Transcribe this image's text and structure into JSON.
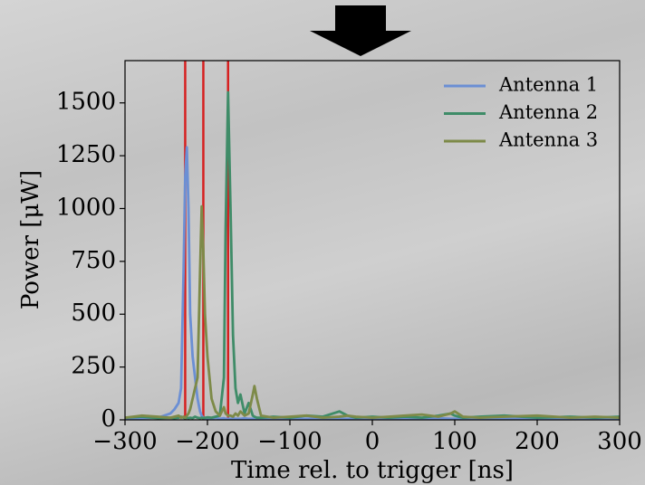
{
  "chart_data": {
    "type": "line",
    "xlabel": "Time rel. to trigger [ns]",
    "ylabel": "Power [μW]",
    "x": [
      -300,
      -280,
      -260,
      -245,
      -240,
      -235,
      -232,
      -229,
      -227,
      -225,
      -223,
      -221,
      -218,
      -215,
      -212,
      -209,
      -207,
      -205,
      -203,
      -200,
      -195,
      -190,
      -185,
      -180,
      -178,
      -175,
      -172,
      -169,
      -166,
      -163,
      -160,
      -155,
      -150,
      -145,
      -143,
      -140,
      -135,
      -120,
      -100,
      -80,
      -60,
      -40,
      -30,
      -20,
      0,
      20,
      40,
      60,
      80,
      95,
      100,
      110,
      130,
      160,
      200,
      240,
      270,
      300
    ],
    "series": [
      {
        "name": "Antenna 1",
        "color": "#6b8fd4",
        "values": [
          5,
          8,
          10,
          30,
          50,
          80,
          150,
          700,
          1150,
          1290,
          1000,
          500,
          300,
          200,
          100,
          40,
          20,
          10,
          8,
          6,
          5,
          10,
          5,
          8,
          5,
          5,
          5,
          8,
          5,
          5,
          5,
          8,
          5,
          5,
          5,
          5,
          5,
          8,
          5,
          5,
          8,
          5,
          5,
          5,
          8,
          5,
          5,
          5,
          8,
          5,
          5,
          5,
          5,
          8,
          5,
          5,
          5,
          5
        ]
      },
      {
        "name": "Antenna 2",
        "color": "#3f8c68",
        "values": [
          10,
          15,
          8,
          10,
          8,
          10,
          15,
          10,
          8,
          10,
          8,
          10,
          8,
          15,
          10,
          8,
          10,
          8,
          10,
          12,
          10,
          15,
          20,
          200,
          900,
          1550,
          1000,
          400,
          150,
          80,
          120,
          30,
          80,
          20,
          15,
          10,
          10,
          15,
          10,
          20,
          15,
          40,
          20,
          10,
          15,
          10,
          15,
          10,
          20,
          30,
          20,
          10,
          15,
          20,
          10,
          15,
          10,
          15
        ]
      },
      {
        "name": "Antenna 3",
        "color": "#7d8a48",
        "values": [
          10,
          20,
          15,
          10,
          15,
          20,
          10,
          15,
          10,
          20,
          30,
          50,
          100,
          150,
          200,
          700,
          1010,
          800,
          500,
          300,
          100,
          40,
          20,
          60,
          30,
          20,
          20,
          15,
          30,
          20,
          40,
          20,
          30,
          120,
          160,
          100,
          20,
          10,
          15,
          20,
          10,
          15,
          20,
          15,
          10,
          15,
          20,
          25,
          15,
          30,
          40,
          15,
          10,
          15,
          20,
          10,
          15,
          10
        ]
      }
    ],
    "vlines": [
      -227,
      -205,
      -175
    ],
    "vline_color": "#d62020",
    "xlim": [
      -300,
      300
    ],
    "xticks": [
      {
        "value": -300,
        "label": "−300"
      },
      {
        "value": -200,
        "label": "−200"
      },
      {
        "value": -100,
        "label": "−100"
      },
      0,
      100,
      200,
      300
    ],
    "ylim": [
      0,
      1700
    ],
    "yticks": [
      0,
      250,
      500,
      750,
      1000,
      1250,
      1500
    ],
    "legend": "upper-right"
  }
}
